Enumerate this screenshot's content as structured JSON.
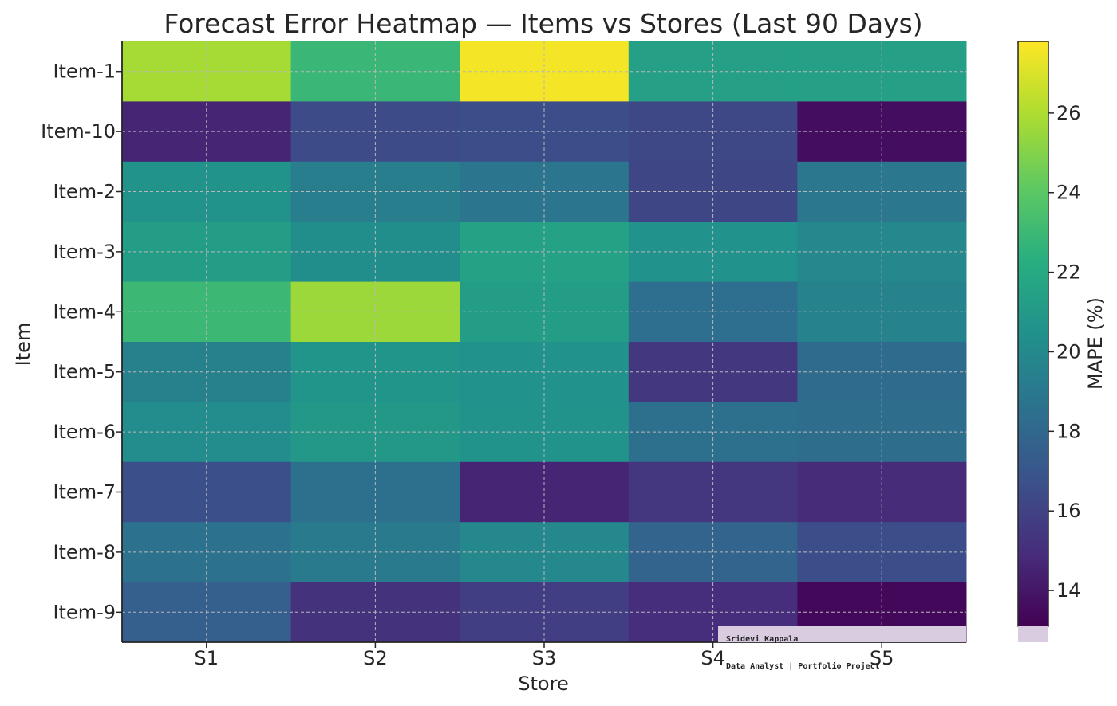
{
  "chart_data": {
    "type": "heatmap",
    "title": "Forecast Error Heatmap — Items vs Stores (Last 90 Days)",
    "xlabel": "Store",
    "ylabel": "Item",
    "x_categories": [
      "S1",
      "S2",
      "S3",
      "S4",
      "S5"
    ],
    "y_categories": [
      "Item-1",
      "Item-10",
      "Item-2",
      "Item-3",
      "Item-4",
      "Item-5",
      "Item-6",
      "Item-7",
      "Item-8",
      "Item-9"
    ],
    "values": [
      [
        25.8,
        22.9,
        27.6,
        21.4,
        21.4
      ],
      [
        14.6,
        16.5,
        16.6,
        16.3,
        13.6
      ],
      [
        20.6,
        19.3,
        18.8,
        16.2,
        18.9
      ],
      [
        21.2,
        20.3,
        21.5,
        20.5,
        19.9
      ],
      [
        23.0,
        25.6,
        21.2,
        18.4,
        19.6
      ],
      [
        19.5,
        20.7,
        20.5,
        15.5,
        18.2
      ],
      [
        20.2,
        20.9,
        20.6,
        18.5,
        18.3
      ],
      [
        16.7,
        18.5,
        14.6,
        15.4,
        14.9
      ],
      [
        18.6,
        19.1,
        19.9,
        17.8,
        16.6
      ],
      [
        17.5,
        15.2,
        15.8,
        15.0,
        13.4
      ]
    ],
    "colorbar": {
      "label": "MAPE (%)",
      "range": [
        13.1,
        27.8
      ],
      "ticks": [
        14,
        16,
        18,
        20,
        22,
        24,
        26
      ],
      "colormap": "viridis"
    },
    "grid": true
  },
  "watermark": {
    "name": "Sridevi Kappala",
    "subtitle": "Data Analyst | Portfolio Project",
    "background": "#d9cce0"
  }
}
